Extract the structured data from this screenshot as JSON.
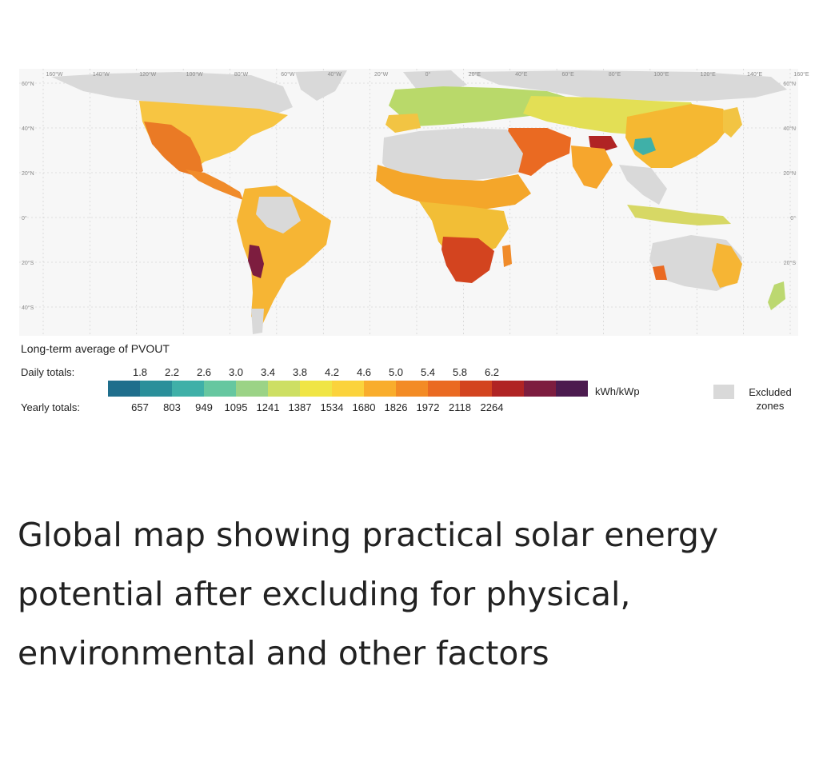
{
  "map": {
    "latitude_labels_left": [
      "60°N",
      "40°N",
      "20°N",
      "0°",
      "20°S",
      "40°S"
    ],
    "latitude_labels_right": [
      "60°N",
      "40°N",
      "20°N",
      "0°",
      "20°S"
    ],
    "longitude_labels": [
      "160°W",
      "140°W",
      "120°W",
      "100°W",
      "80°W",
      "60°W",
      "40°W",
      "20°W",
      "0°",
      "20°E",
      "40°E",
      "60°E",
      "80°E",
      "100°E",
      "120°E",
      "140°E",
      "160°E"
    ],
    "colors": {
      "ocean": "#f7f7f7",
      "excluded": "#d9d9d9",
      "grid": "#c8c8c8"
    }
  },
  "legend": {
    "title": "Long-term average of PVOUT",
    "daily_label": "Daily totals:",
    "yearly_label": "Yearly totals:",
    "daily_ticks": [
      "1.8",
      "2.2",
      "2.6",
      "3.0",
      "3.4",
      "3.8",
      "4.2",
      "4.6",
      "5.0",
      "5.4",
      "5.8",
      "6.2"
    ],
    "yearly_ticks": [
      "657",
      "803",
      "949",
      "1095",
      "1241",
      "1387",
      "1534",
      "1680",
      "1826",
      "1972",
      "2118",
      "2264"
    ],
    "unit": "kWh/kWp",
    "excluded_label": "Excluded zones",
    "scale_colors": [
      "#1f6e8c",
      "#2a8f9a",
      "#3fb0a8",
      "#66c7a0",
      "#9bd386",
      "#cddf63",
      "#f0e545",
      "#fbd33c",
      "#f9ad2c",
      "#f38b25",
      "#ea6a22",
      "#d3441f",
      "#b02424",
      "#7d1d3f",
      "#4c1b4f"
    ]
  },
  "caption": "Global map showing practical solar energy potential after excluding for physical, environmental and other factors"
}
